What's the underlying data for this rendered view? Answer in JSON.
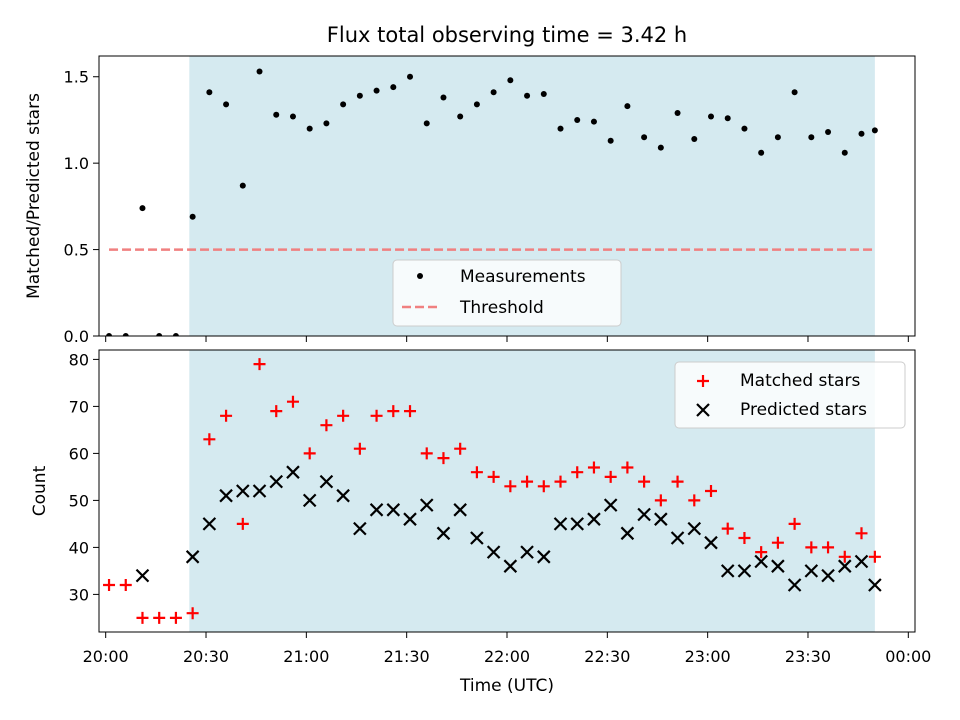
{
  "chart_data": [
    {
      "type": "scatter",
      "title": "Flux total observing time = 3.42 h",
      "xlabel": "",
      "ylabel": "Matched/Predicted stars",
      "ylim": [
        0,
        1.62
      ],
      "yticks": [
        0.0,
        0.5,
        1.0,
        1.5
      ],
      "ytick_labels": [
        "0.0",
        "0.5",
        "1.0",
        "1.5"
      ],
      "xlim": [
        "19:58",
        "24:02"
      ],
      "shaded_span": [
        "20:25",
        "23:50"
      ],
      "shade_color": "#d5eaf0",
      "threshold": {
        "name": "Threshold",
        "y": 0.5,
        "x": [
          "20:01",
          "23:50"
        ],
        "color": "#f08080"
      },
      "legend": {
        "position": "lower center",
        "entries": [
          "Measurements",
          "Threshold"
        ]
      },
      "series": [
        {
          "name": "Measurements",
          "marker": "dot",
          "color": "#000000",
          "x": [
            "20:01",
            "20:06",
            "20:11",
            "20:16",
            "20:21",
            "20:26",
            "20:31",
            "20:36",
            "20:41",
            "20:46",
            "20:51",
            "20:56",
            "21:01",
            "21:06",
            "21:11",
            "21:16",
            "21:21",
            "21:26",
            "21:31",
            "21:36",
            "21:41",
            "21:46",
            "21:51",
            "21:56",
            "22:01",
            "22:06",
            "22:11",
            "22:16",
            "22:21",
            "22:26",
            "22:31",
            "22:36",
            "22:41",
            "22:46",
            "22:51",
            "22:56",
            "23:01",
            "23:06",
            "23:11",
            "23:16",
            "23:21",
            "23:26",
            "23:31",
            "23:36",
            "23:41",
            "23:46",
            "23:50"
          ],
          "y": [
            0.0,
            0.0,
            0.74,
            0.0,
            0.0,
            0.69,
            1.41,
            1.34,
            0.87,
            1.53,
            1.28,
            1.27,
            1.2,
            1.23,
            1.34,
            1.39,
            1.42,
            1.44,
            1.5,
            1.23,
            1.38,
            1.27,
            1.34,
            1.41,
            1.48,
            1.39,
            1.4,
            1.2,
            1.25,
            1.24,
            1.13,
            1.33,
            1.15,
            1.09,
            1.29,
            1.14,
            1.27,
            1.26,
            1.2,
            1.06,
            1.15,
            1.41,
            1.15,
            1.18,
            1.06,
            1.17,
            1.19
          ]
        }
      ]
    },
    {
      "type": "scatter",
      "title": "",
      "xlabel": "Time (UTC)",
      "ylabel": "Count",
      "ylim": [
        22,
        82
      ],
      "yticks": [
        30,
        40,
        50,
        60,
        70,
        80
      ],
      "ytick_labels": [
        "30",
        "40",
        "50",
        "60",
        "70",
        "80"
      ],
      "xlim": [
        "19:58",
        "24:02"
      ],
      "xticks": [
        "20:00",
        "20:30",
        "21:00",
        "21:30",
        "22:00",
        "22:30",
        "23:00",
        "23:30",
        "24:00"
      ],
      "xtick_labels": [
        "20:00",
        "20:30",
        "21:00",
        "21:30",
        "22:00",
        "22:30",
        "23:00",
        "23:30",
        "00:00"
      ],
      "shaded_span": [
        "20:25",
        "23:50"
      ],
      "shade_color": "#d5eaf0",
      "legend": {
        "position": "upper right",
        "entries": [
          "Matched stars",
          "Predicted stars"
        ]
      },
      "series": [
        {
          "name": "Matched stars",
          "marker": "plus",
          "color": "#ff0000",
          "x": [
            "20:01",
            "20:06",
            "20:11",
            "20:16",
            "20:21",
            "20:26",
            "20:31",
            "20:36",
            "20:41",
            "20:46",
            "20:51",
            "20:56",
            "21:01",
            "21:06",
            "21:11",
            "21:16",
            "21:21",
            "21:26",
            "21:31",
            "21:36",
            "21:41",
            "21:46",
            "21:51",
            "21:56",
            "22:01",
            "22:06",
            "22:11",
            "22:16",
            "22:21",
            "22:26",
            "22:31",
            "22:36",
            "22:41",
            "22:46",
            "22:51",
            "22:56",
            "23:01",
            "23:06",
            "23:11",
            "23:16",
            "23:21",
            "23:26",
            "23:31",
            "23:36",
            "23:41",
            "23:46",
            "23:50"
          ],
          "y": [
            32,
            32,
            25,
            25,
            25,
            26,
            63,
            68,
            45,
            79,
            69,
            71,
            60,
            66,
            68,
            61,
            68,
            69,
            69,
            60,
            59,
            61,
            56,
            55,
            53,
            54,
            53,
            54,
            56,
            57,
            55,
            57,
            54,
            50,
            54,
            50,
            52,
            44,
            42,
            39,
            41,
            45,
            40,
            40,
            38,
            43,
            38
          ]
        },
        {
          "name": "Predicted stars",
          "marker": "x",
          "color": "#000000",
          "x": [
            "20:11",
            "20:26",
            "20:31",
            "20:36",
            "20:41",
            "20:46",
            "20:51",
            "20:56",
            "21:01",
            "21:06",
            "21:11",
            "21:16",
            "21:21",
            "21:26",
            "21:31",
            "21:36",
            "21:41",
            "21:46",
            "21:51",
            "21:56",
            "22:01",
            "22:06",
            "22:11",
            "22:16",
            "22:21",
            "22:26",
            "22:31",
            "22:36",
            "22:41",
            "22:46",
            "22:51",
            "22:56",
            "23:01",
            "23:06",
            "23:11",
            "23:16",
            "23:21",
            "23:26",
            "23:31",
            "23:36",
            "23:41",
            "23:46",
            "23:50"
          ],
          "y": [
            34,
            38,
            45,
            51,
            52,
            52,
            54,
            56,
            50,
            54,
            51,
            44,
            48,
            48,
            46,
            49,
            43,
            48,
            42,
            39,
            36,
            39,
            38,
            45,
            45,
            46,
            49,
            43,
            47,
            46,
            42,
            44,
            41,
            35,
            35,
            37,
            36,
            32,
            35,
            34,
            36,
            37,
            32
          ]
        }
      ]
    }
  ]
}
